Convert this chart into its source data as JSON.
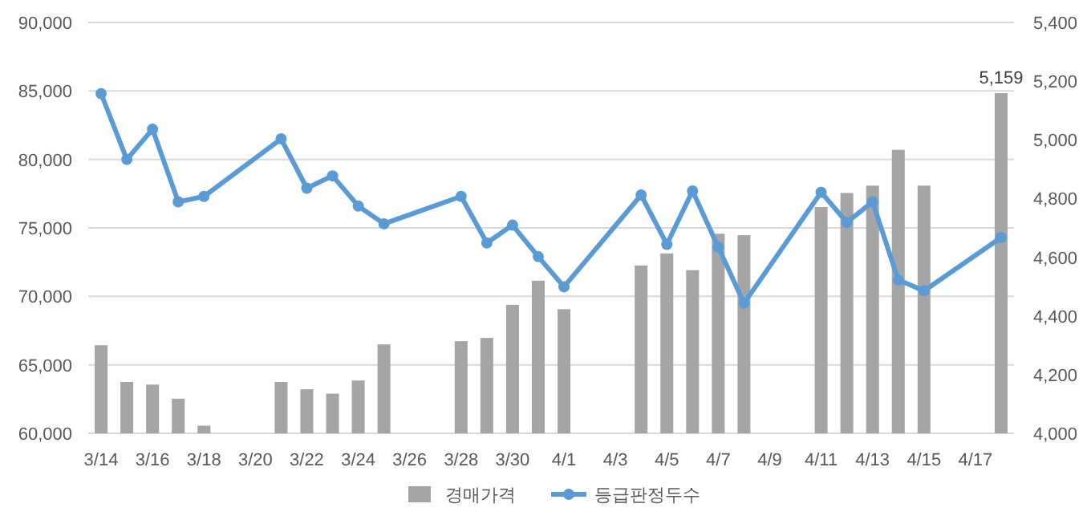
{
  "chart_data": {
    "type": "bar",
    "categories": [
      "3/14",
      null,
      "3/16",
      null,
      "3/18",
      null,
      "3/20",
      null,
      "3/22",
      null,
      "3/24",
      null,
      "3/26",
      null,
      "3/28",
      null,
      "3/30",
      null,
      "4/1",
      null,
      "4/3",
      null,
      "4/5",
      null,
      "4/7",
      null,
      "4/9",
      null,
      "4/11",
      null,
      "4/13",
      null,
      "4/15",
      null,
      "4/17",
      null
    ],
    "series": [
      {
        "name": "경매가격",
        "axis": "y2",
        "color": "#a5a5a5",
        "values": [
          4300,
          4175,
          4166,
          4118,
          4026,
          null,
          null,
          4175,
          4150,
          4135,
          4180,
          4303,
          null,
          null,
          4314,
          4325,
          4438,
          4520,
          4423,
          null,
          null,
          4572,
          4613,
          4556,
          4680,
          4675,
          null,
          null,
          4771,
          4819,
          4844,
          4966,
          4844,
          null,
          null,
          5159
        ],
        "value_labels": [
          null,
          null,
          null,
          null,
          null,
          null,
          null,
          null,
          null,
          null,
          null,
          null,
          null,
          null,
          null,
          null,
          null,
          null,
          null,
          null,
          null,
          null,
          null,
          null,
          null,
          null,
          null,
          null,
          null,
          null,
          null,
          null,
          null,
          null,
          null,
          "5,159"
        ]
      },
      {
        "name": "등급판정두수",
        "type": "line",
        "axis": "y",
        "color": "#5b9bd5",
        "marker": "circle",
        "values": [
          84800,
          80000,
          82200,
          76900,
          77300,
          null,
          null,
          81500,
          77900,
          78800,
          76600,
          75300,
          null,
          null,
          77300,
          73900,
          75200,
          72900,
          70700,
          null,
          null,
          77400,
          73800,
          77700,
          73600,
          69500,
          null,
          null,
          77600,
          75400,
          76900,
          71200,
          70400,
          null,
          null,
          74300
        ]
      }
    ],
    "ylim": [
      60000,
      90000
    ],
    "yticks": [
      {
        "value": 60000,
        "label": "60,000"
      },
      {
        "value": 65000,
        "label": "65,000"
      },
      {
        "value": 70000,
        "label": "70,000"
      },
      {
        "value": 75000,
        "label": "75,000"
      },
      {
        "value": 80000,
        "label": "80,000"
      },
      {
        "value": 85000,
        "label": "85,000"
      },
      {
        "value": 90000,
        "label": "90,000"
      }
    ],
    "y2lim": [
      4000,
      5400
    ],
    "y2ticks": [
      {
        "value": 4000,
        "label": "4,000"
      },
      {
        "value": 4200,
        "label": "4,200"
      },
      {
        "value": 4400,
        "label": "4,400"
      },
      {
        "value": 4600,
        "label": "4,600"
      },
      {
        "value": 4800,
        "label": "4,800"
      },
      {
        "value": 5000,
        "label": "5,000"
      },
      {
        "value": 5200,
        "label": "5,200"
      },
      {
        "value": 5400,
        "label": "5,400"
      }
    ],
    "grid": "y",
    "legend": "bottom"
  }
}
